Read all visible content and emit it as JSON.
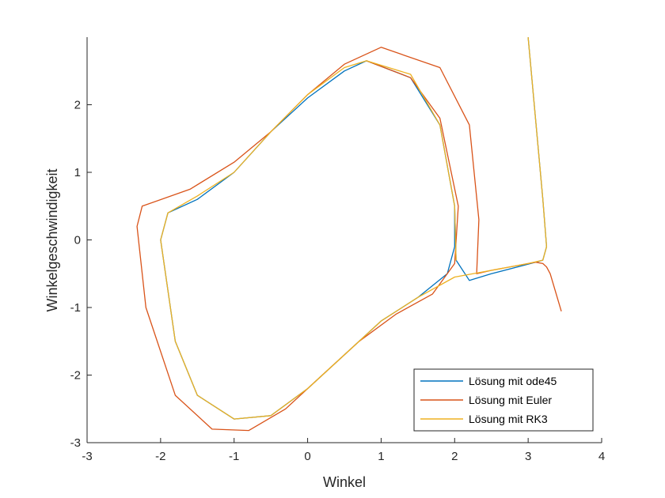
{
  "chart_data": {
    "type": "line",
    "title": "",
    "xlabel": "Winkel",
    "ylabel": "Winkelgeschwindigkeit",
    "xlim": [
      -3,
      4
    ],
    "ylim": [
      -3,
      3
    ],
    "x_ticks": [
      "-3",
      "-2",
      "-1",
      "0",
      "1",
      "2",
      "3",
      "4"
    ],
    "y_ticks": [
      "-3",
      "-2",
      "-1",
      "0",
      "1",
      "2"
    ],
    "grid": false,
    "legend_position": "bottom-right",
    "series": [
      {
        "name": "Lösung mit ode45",
        "color": "#0072BD",
        "points": [
          [
            3.0,
            3.0
          ],
          [
            3.1,
            1.8
          ],
          [
            3.2,
            0.6
          ],
          [
            3.25,
            -0.1
          ],
          [
            3.2,
            -0.3
          ],
          [
            3.1,
            -0.33
          ],
          [
            2.5,
            -0.5
          ],
          [
            2.2,
            -0.6
          ],
          [
            2.02,
            -0.3
          ],
          [
            2.0,
            0.5
          ],
          [
            1.8,
            1.7
          ],
          [
            1.4,
            2.4
          ],
          [
            0.8,
            2.65
          ],
          [
            0.5,
            2.5
          ],
          [
            0.0,
            2.1
          ],
          [
            -0.5,
            1.6
          ],
          [
            -1.0,
            1.0
          ],
          [
            -1.5,
            0.6
          ],
          [
            -1.9,
            0.4
          ],
          [
            -2.0,
            0.0
          ],
          [
            -1.8,
            -1.5
          ],
          [
            -1.5,
            -2.3
          ],
          [
            -1.0,
            -2.65
          ],
          [
            -0.5,
            -2.6
          ],
          [
            0.0,
            -2.2
          ],
          [
            0.5,
            -1.7
          ],
          [
            1.0,
            -1.2
          ],
          [
            1.5,
            -0.85
          ],
          [
            1.9,
            -0.5
          ],
          [
            2.0,
            -0.1
          ],
          [
            2.0,
            0.5
          ]
        ]
      },
      {
        "name": "Lösung mit Euler",
        "color": "#D95319",
        "points": [
          [
            3.45,
            -1.05
          ],
          [
            3.3,
            -0.5
          ],
          [
            3.25,
            -0.4
          ],
          [
            3.2,
            -0.35
          ],
          [
            3.1,
            -0.33
          ],
          [
            2.5,
            -0.45
          ],
          [
            2.3,
            -0.5
          ],
          [
            2.33,
            0.3
          ],
          [
            2.2,
            1.7
          ],
          [
            1.8,
            2.55
          ],
          [
            1.0,
            2.85
          ],
          [
            0.5,
            2.6
          ],
          [
            0.0,
            2.15
          ],
          [
            -0.5,
            1.6
          ],
          [
            -1.0,
            1.15
          ],
          [
            -1.6,
            0.75
          ],
          [
            -2.25,
            0.5
          ],
          [
            -2.32,
            0.2
          ],
          [
            -2.2,
            -1.0
          ],
          [
            -1.8,
            -2.3
          ],
          [
            -1.3,
            -2.8
          ],
          [
            -0.8,
            -2.82
          ],
          [
            -0.3,
            -2.5
          ],
          [
            0.2,
            -2.0
          ],
          [
            0.7,
            -1.5
          ],
          [
            1.2,
            -1.1
          ],
          [
            1.7,
            -0.8
          ],
          [
            2.0,
            -0.35
          ],
          [
            2.05,
            0.5
          ],
          [
            1.8,
            1.8
          ],
          [
            1.4,
            2.4
          ],
          [
            0.8,
            2.65
          ]
        ]
      },
      {
        "name": "Lösung mit RK3",
        "color": "#EDB120",
        "points": [
          [
            3.0,
            3.0
          ],
          [
            3.1,
            1.8
          ],
          [
            3.2,
            0.6
          ],
          [
            3.25,
            -0.1
          ],
          [
            3.2,
            -0.3
          ],
          [
            3.0,
            -0.35
          ],
          [
            2.5,
            -0.45
          ],
          [
            2.0,
            -0.55
          ],
          [
            1.5,
            -0.85
          ],
          [
            1.0,
            -1.2
          ],
          [
            0.5,
            -1.7
          ],
          [
            0.0,
            -2.2
          ],
          [
            -0.5,
            -2.6
          ],
          [
            -1.0,
            -2.65
          ],
          [
            -1.5,
            -2.3
          ],
          [
            -1.8,
            -1.5
          ],
          [
            -2.0,
            0.0
          ],
          [
            -1.9,
            0.4
          ],
          [
            -1.5,
            0.65
          ],
          [
            -1.0,
            1.0
          ],
          [
            -0.5,
            1.6
          ],
          [
            0.0,
            2.15
          ],
          [
            0.5,
            2.55
          ],
          [
            0.8,
            2.65
          ],
          [
            1.4,
            2.45
          ],
          [
            1.8,
            1.7
          ],
          [
            2.0,
            0.5
          ],
          [
            2.02,
            -0.3
          ]
        ]
      }
    ]
  }
}
